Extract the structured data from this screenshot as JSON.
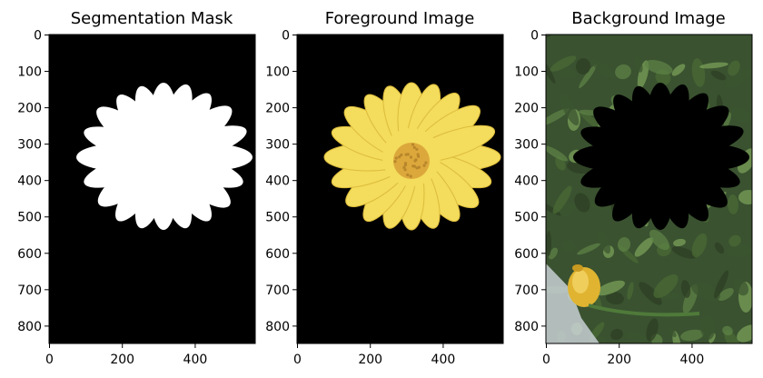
{
  "figure": {
    "panels": [
      {
        "title": "Segmentation Mask",
        "kind": "mask"
      },
      {
        "title": "Foreground Image",
        "kind": "foreground"
      },
      {
        "title": "Background Image",
        "kind": "background"
      }
    ],
    "y_ticks": [
      "0",
      "100",
      "200",
      "300",
      "400",
      "500",
      "600",
      "700",
      "800"
    ],
    "x_ticks": [
      "0",
      "200",
      "400"
    ],
    "colors": {
      "mask_bg": "#000000",
      "mask_fg": "#ffffff",
      "petal": "#f4dc5c",
      "petal_edge": "#dcbc3c",
      "flower_center": "#dca83c",
      "foliage_dark": "#2e3f23",
      "foliage": "#4a6a34",
      "foliage_light": "#7aa058",
      "sky": "#c8d0d4",
      "bud": "#e0b430"
    }
  }
}
